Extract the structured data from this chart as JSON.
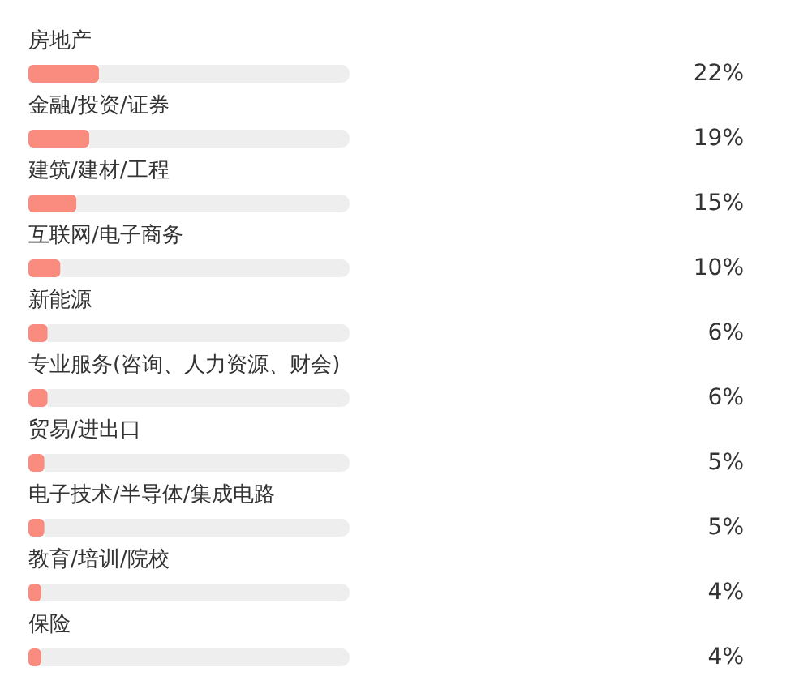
{
  "chart_data": {
    "type": "bar",
    "orientation": "horizontal",
    "stacked": true,
    "categories": [
      "房地产",
      "金融/投资/证券",
      "建筑/建材/工程",
      "互联网/电子商务",
      "新能源",
      "专业服务(咨询、人力资源、财会)",
      "贸易/进出口",
      "电子技术/半导体/集成电路",
      "教育/培训/院校",
      "保险"
    ],
    "series": [
      {
        "color": "#f98b7f",
        "values": [
          22,
          19,
          15,
          10,
          6,
          6,
          5,
          5,
          4,
          4
        ],
        "value_labels": [
          "22%",
          "19%",
          "15%",
          "10%",
          "6%",
          "6%",
          "5%",
          "5%",
          "4%",
          "4%"
        ]
      },
      {
        "color": "#eeeeee",
        "values": [
          78,
          81,
          85,
          90,
          94,
          94,
          95,
          95,
          96,
          96
        ]
      }
    ],
    "xlim": [
      0,
      100
    ],
    "tick_labels": "y"
  }
}
